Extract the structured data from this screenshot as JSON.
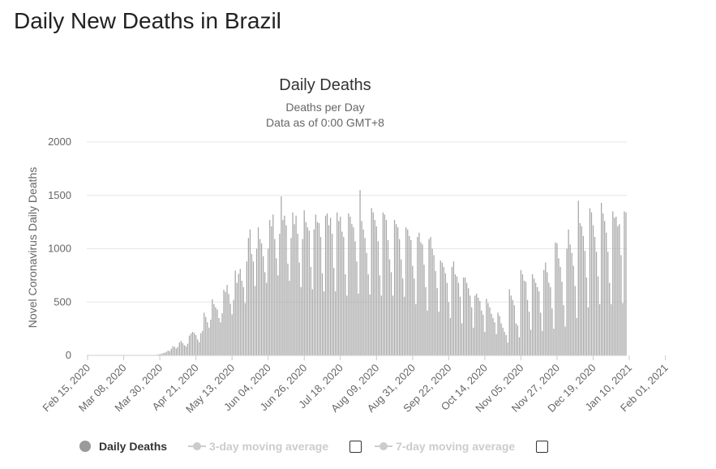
{
  "page": {
    "title": "Daily New Deaths in Brazil"
  },
  "colors": {
    "bar": "#a6a6a6",
    "grid": "#e6e6e6",
    "text": "#333333",
    "axis_text": "#666666",
    "legend_inactive": "#cccccc"
  },
  "legend": {
    "items": [
      {
        "label": "Daily Deaths",
        "icon": "filled-circle-icon",
        "active": true
      },
      {
        "label": "3-day moving average",
        "icon": "line-marker-icon",
        "active": false
      },
      {
        "label": "7-day moving average",
        "icon": "line-marker-icon",
        "active": false
      }
    ]
  },
  "chart_data": {
    "type": "bar",
    "title": "Daily Deaths",
    "subtitle": [
      "Deaths per Day",
      "Data as of 0:00 GMT+8"
    ],
    "ylabel": "Novel Coronavirus Daily Deaths",
    "xlabel": "",
    "ylim": [
      0,
      2000
    ],
    "yticks": [
      0,
      500,
      1000,
      1500,
      2000
    ],
    "grid": true,
    "x_start": "2020-02-15",
    "x_tick_labels": [
      "Feb 15, 2020",
      "Mar 08, 2020",
      "Mar 30, 2020",
      "Apr 21, 2020",
      "May 13, 2020",
      "Jun 04, 2020",
      "Jun 26, 2020",
      "Jul 18, 2020",
      "Aug 09, 2020",
      "Aug 31, 2020",
      "Sep 22, 2020",
      "Oct 14, 2020",
      "Nov 05, 2020",
      "Nov 27, 2020",
      "Dec 19, 2020",
      "Jan 10, 2021",
      "Feb 01, 2021"
    ],
    "series": [
      {
        "name": "Daily Deaths",
        "values": [
          0,
          0,
          0,
          0,
          0,
          0,
          0,
          0,
          0,
          0,
          0,
          0,
          0,
          0,
          0,
          0,
          0,
          0,
          0,
          0,
          0,
          0,
          0,
          0,
          0,
          0,
          0,
          0,
          0,
          0,
          0,
          0,
          0,
          0,
          0,
          0,
          0,
          0,
          0,
          0,
          1,
          2,
          5,
          8,
          12,
          15,
          22,
          25,
          33,
          45,
          40,
          63,
          86,
          80,
          65,
          79,
          122,
          135,
          115,
          95,
          85,
          110,
          185,
          205,
          220,
          210,
          190,
          150,
          125,
          208,
          230,
          400,
          360,
          310,
          260,
          335,
          525,
          480,
          450,
          430,
          350,
          310,
          395,
          615,
          595,
          660,
          575,
          485,
          385,
          520,
          795,
          680,
          765,
          810,
          700,
          640,
          490,
          880,
          1100,
          1180,
          950,
          880,
          650,
          1000,
          1200,
          1090,
          1050,
          930,
          780,
          680,
          1000,
          1270,
          1210,
          1320,
          1090,
          910,
          750,
          1140,
          1490,
          1270,
          1310,
          1220,
          860,
          700,
          1100,
          1340,
          1230,
          1310,
          1140,
          870,
          640,
          1090,
          1360,
          1250,
          1200,
          1170,
          830,
          620,
          1180,
          1320,
          1250,
          1240,
          1110,
          770,
          600,
          1310,
          1330,
          1220,
          1290,
          1140,
          820,
          600,
          1340,
          1260,
          1300,
          1160,
          1110,
          760,
          560,
          1330,
          1300,
          1230,
          1200,
          1070,
          880,
          580,
          1550,
          1260,
          1180,
          1100,
          960,
          760,
          570,
          1380,
          1340,
          1270,
          1210,
          1070,
          750,
          560,
          1340,
          1320,
          1270,
          1080,
          900,
          780,
          560,
          1270,
          1230,
          1200,
          1090,
          900,
          720,
          550,
          1200,
          1180,
          1120,
          1080,
          840,
          720,
          480,
          1110,
          1150,
          1060,
          1040,
          850,
          640,
          420,
          1090,
          1110,
          1000,
          940,
          790,
          630,
          410,
          890,
          870,
          830,
          770,
          680,
          500,
          350,
          830,
          880,
          760,
          740,
          680,
          550,
          300,
          730,
          730,
          680,
          630,
          560,
          450,
          260,
          560,
          580,
          540,
          510,
          420,
          380,
          220,
          530,
          490,
          450,
          390,
          350,
          310,
          200,
          400,
          370,
          300,
          260,
          220,
          190,
          120,
          620,
          560,
          520,
          470,
          300,
          280,
          170,
          800,
          760,
          700,
          690,
          520,
          410,
          240,
          760,
          720,
          680,
          640,
          600,
          400,
          230,
          800,
          870,
          780,
          680,
          640,
          440,
          250,
          1060,
          1050,
          910,
          830,
          690,
          470,
          270,
          1000,
          1180,
          1040,
          960,
          840,
          650,
          350,
          1450,
          1240,
          1210,
          1120,
          980,
          730,
          450,
          1380,
          1340,
          1220,
          1110,
          970,
          740,
          480,
          1430,
          1330,
          1260,
          1150,
          970,
          680,
          480,
          1350,
          1290,
          1300,
          1210,
          1230,
          940,
          490,
          1350,
          1340
        ]
      }
    ]
  }
}
